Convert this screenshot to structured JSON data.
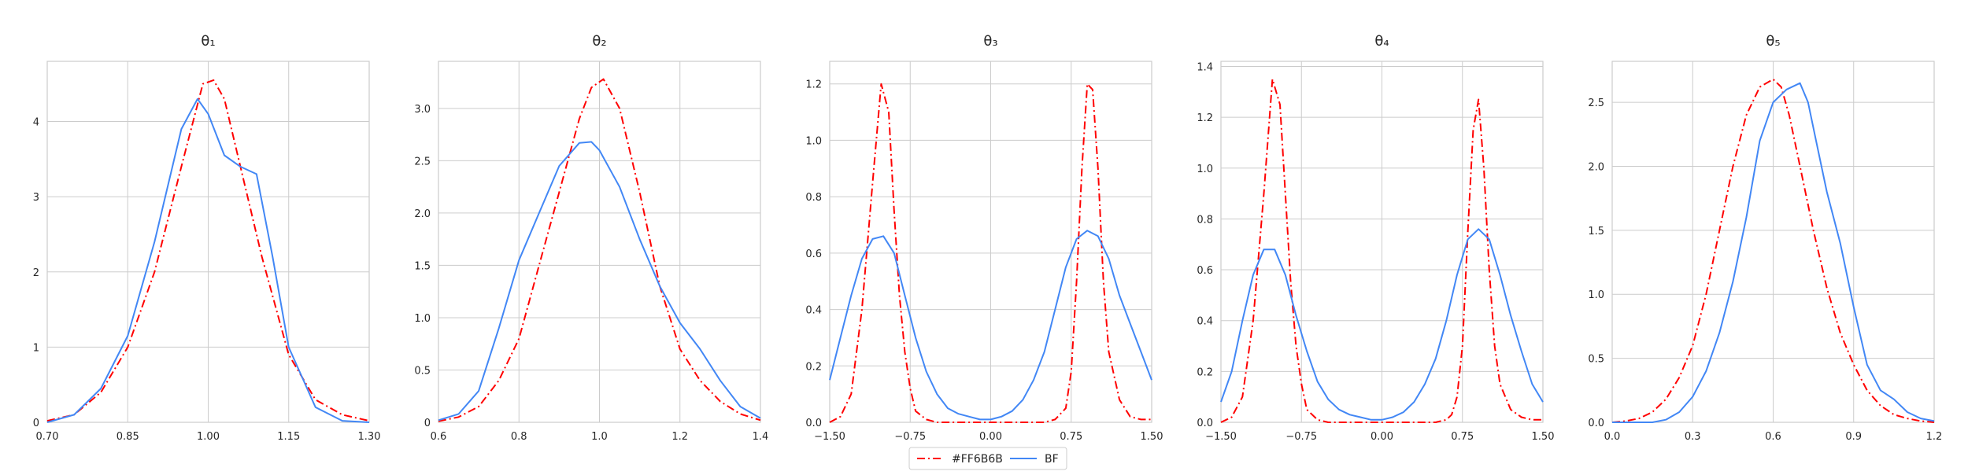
{
  "chart_data": [
    {
      "type": "line",
      "title": "θ₁",
      "xlim": [
        0.7,
        1.3
      ],
      "ylim": [
        0,
        4.8
      ],
      "xticks": [
        "0.70",
        "0.85",
        "1.00",
        "1.15",
        "1.30"
      ],
      "yticks": [
        "0",
        "1",
        "2",
        "3",
        "4"
      ],
      "grid": true,
      "series": [
        {
          "name": "#FF6B6B",
          "color": "#ff0000",
          "style": "dashdot",
          "x": [
            0.7,
            0.75,
            0.8,
            0.85,
            0.9,
            0.95,
            0.99,
            1.01,
            1.03,
            1.06,
            1.1,
            1.15,
            1.2,
            1.25,
            1.3
          ],
          "y": [
            0.02,
            0.1,
            0.4,
            1.0,
            2.0,
            3.4,
            4.5,
            4.55,
            4.3,
            3.4,
            2.2,
            0.9,
            0.3,
            0.1,
            0.02
          ]
        },
        {
          "name": "BF",
          "color": "#4287f5",
          "style": "solid",
          "x": [
            0.7,
            0.75,
            0.8,
            0.85,
            0.9,
            0.95,
            0.98,
            1.0,
            1.03,
            1.06,
            1.09,
            1.12,
            1.15,
            1.2,
            1.25,
            1.3
          ],
          "y": [
            0.0,
            0.1,
            0.45,
            1.15,
            2.4,
            3.9,
            4.3,
            4.1,
            3.55,
            3.4,
            3.3,
            2.2,
            1.0,
            0.2,
            0.02,
            0.0
          ]
        }
      ]
    },
    {
      "type": "line",
      "title": "θ₂",
      "xlim": [
        0.6,
        1.4
      ],
      "ylim": [
        0,
        3.45
      ],
      "xticks": [
        "0.6",
        "0.8",
        "1.0",
        "1.2",
        "1.4"
      ],
      "yticks": [
        "0",
        "0.5",
        "1.0",
        "1.5",
        "2.0",
        "2.5",
        "3.0"
      ],
      "grid": true,
      "series": [
        {
          "name": "#FF6B6B",
          "color": "#ff0000",
          "style": "dashdot",
          "x": [
            0.6,
            0.65,
            0.7,
            0.75,
            0.8,
            0.85,
            0.9,
            0.95,
            0.98,
            1.01,
            1.05,
            1.1,
            1.15,
            1.2,
            1.25,
            1.3,
            1.35,
            1.4
          ],
          "y": [
            0.01,
            0.05,
            0.15,
            0.4,
            0.8,
            1.5,
            2.2,
            2.9,
            3.2,
            3.28,
            3.0,
            2.2,
            1.3,
            0.7,
            0.4,
            0.2,
            0.08,
            0.02
          ]
        },
        {
          "name": "BF",
          "color": "#4287f5",
          "style": "solid",
          "x": [
            0.6,
            0.65,
            0.7,
            0.75,
            0.8,
            0.85,
            0.9,
            0.95,
            0.98,
            1.0,
            1.05,
            1.1,
            1.15,
            1.2,
            1.25,
            1.3,
            1.35,
            1.4
          ],
          "y": [
            0.02,
            0.08,
            0.3,
            0.9,
            1.55,
            2.0,
            2.45,
            2.67,
            2.68,
            2.6,
            2.25,
            1.75,
            1.3,
            0.95,
            0.7,
            0.4,
            0.15,
            0.04
          ]
        }
      ]
    },
    {
      "type": "line",
      "title": "θ₃",
      "xlim": [
        -1.5,
        1.5
      ],
      "ylim": [
        0,
        1.28
      ],
      "xticks": [
        "−1.50",
        "−0.75",
        "0.00",
        "0.75",
        "1.50"
      ],
      "xtick_values": [
        -1.5,
        -0.75,
        0,
        0.75,
        1.5
      ],
      "yticks": [
        "0.0",
        "0.2",
        "0.4",
        "0.6",
        "0.8",
        "1.0",
        "1.2"
      ],
      "grid": true,
      "series": [
        {
          "name": "#FF6B6B",
          "color": "#ff0000",
          "style": "dashdot",
          "x": [
            -1.5,
            -1.4,
            -1.3,
            -1.2,
            -1.1,
            -1.02,
            -0.95,
            -0.9,
            -0.85,
            -0.8,
            -0.75,
            -0.7,
            -0.6,
            -0.5,
            -0.3,
            0.0,
            0.3,
            0.5,
            0.6,
            0.7,
            0.75,
            0.8,
            0.85,
            0.9,
            0.95,
            1.0,
            1.05,
            1.1,
            1.2,
            1.3,
            1.4,
            1.5
          ],
          "y": [
            0.0,
            0.02,
            0.1,
            0.4,
            0.85,
            1.2,
            1.1,
            0.75,
            0.45,
            0.25,
            0.12,
            0.04,
            0.01,
            0.0,
            0.0,
            0.0,
            0.0,
            0.0,
            0.01,
            0.05,
            0.18,
            0.5,
            0.9,
            1.2,
            1.18,
            0.9,
            0.5,
            0.25,
            0.08,
            0.02,
            0.01,
            0.01
          ]
        },
        {
          "name": "BF",
          "color": "#4287f5",
          "style": "solid",
          "x": [
            -1.5,
            -1.4,
            -1.3,
            -1.2,
            -1.1,
            -1.0,
            -0.9,
            -0.8,
            -0.7,
            -0.6,
            -0.5,
            -0.4,
            -0.3,
            -0.2,
            -0.1,
            0.0,
            0.1,
            0.2,
            0.3,
            0.4,
            0.5,
            0.6,
            0.7,
            0.8,
            0.9,
            1.0,
            1.1,
            1.2,
            1.3,
            1.4,
            1.5
          ],
          "y": [
            0.15,
            0.3,
            0.45,
            0.58,
            0.65,
            0.66,
            0.6,
            0.45,
            0.3,
            0.18,
            0.1,
            0.05,
            0.03,
            0.02,
            0.01,
            0.01,
            0.02,
            0.04,
            0.08,
            0.15,
            0.25,
            0.4,
            0.55,
            0.65,
            0.68,
            0.66,
            0.58,
            0.45,
            0.35,
            0.25,
            0.15
          ]
        }
      ]
    },
    {
      "type": "line",
      "title": "θ₄",
      "xlim": [
        -1.5,
        1.5
      ],
      "ylim": [
        0,
        1.42
      ],
      "xticks": [
        "−1.50",
        "−0.75",
        "0.00",
        "0.75",
        "1.50"
      ],
      "xtick_values": [
        -1.5,
        -0.75,
        0,
        0.75,
        1.5
      ],
      "yticks": [
        "0.0",
        "0.2",
        "0.4",
        "0.6",
        "0.8",
        "1.0",
        "1.2",
        "1.4"
      ],
      "grid": true,
      "series": [
        {
          "name": "#FF6B6B",
          "color": "#ff0000",
          "style": "dashdot",
          "x": [
            -1.5,
            -1.4,
            -1.3,
            -1.2,
            -1.1,
            -1.02,
            -0.95,
            -0.9,
            -0.85,
            -0.8,
            -0.75,
            -0.7,
            -0.6,
            -0.5,
            -0.3,
            0.0,
            0.3,
            0.5,
            0.6,
            0.65,
            0.7,
            0.75,
            0.8,
            0.85,
            0.9,
            0.95,
            1.0,
            1.05,
            1.1,
            1.2,
            1.3,
            1.4,
            1.5
          ],
          "y": [
            0.0,
            0.02,
            0.1,
            0.4,
            0.9,
            1.35,
            1.25,
            0.9,
            0.55,
            0.3,
            0.15,
            0.05,
            0.01,
            0.0,
            0.0,
            0.0,
            0.0,
            0.0,
            0.01,
            0.03,
            0.1,
            0.3,
            0.75,
            1.15,
            1.27,
            1.0,
            0.6,
            0.3,
            0.15,
            0.05,
            0.02,
            0.01,
            0.01
          ]
        },
        {
          "name": "BF",
          "color": "#4287f5",
          "style": "solid",
          "x": [
            -1.5,
            -1.4,
            -1.3,
            -1.2,
            -1.1,
            -1.0,
            -0.9,
            -0.8,
            -0.7,
            -0.6,
            -0.5,
            -0.4,
            -0.3,
            -0.2,
            -0.1,
            0.0,
            0.1,
            0.2,
            0.3,
            0.4,
            0.5,
            0.6,
            0.7,
            0.8,
            0.9,
            1.0,
            1.1,
            1.2,
            1.3,
            1.4,
            1.5
          ],
          "y": [
            0.08,
            0.2,
            0.4,
            0.58,
            0.68,
            0.68,
            0.58,
            0.42,
            0.28,
            0.16,
            0.09,
            0.05,
            0.03,
            0.02,
            0.01,
            0.01,
            0.02,
            0.04,
            0.08,
            0.15,
            0.25,
            0.4,
            0.58,
            0.72,
            0.76,
            0.72,
            0.58,
            0.42,
            0.28,
            0.15,
            0.08
          ]
        }
      ]
    },
    {
      "type": "line",
      "title": "θ₅",
      "xlim": [
        0.0,
        1.2
      ],
      "ylim": [
        0,
        2.82
      ],
      "xticks": [
        "0.0",
        "0.3",
        "0.6",
        "0.9",
        "1.2"
      ],
      "yticks": [
        "0.0",
        "0.5",
        "1.0",
        "1.5",
        "2.0",
        "2.5"
      ],
      "grid": true,
      "series": [
        {
          "name": "#FF6B6B",
          "color": "#ff0000",
          "style": "dashdot",
          "x": [
            0.0,
            0.05,
            0.1,
            0.15,
            0.2,
            0.25,
            0.3,
            0.35,
            0.4,
            0.45,
            0.5,
            0.55,
            0.6,
            0.63,
            0.66,
            0.7,
            0.75,
            0.8,
            0.85,
            0.9,
            0.95,
            1.0,
            1.05,
            1.1,
            1.15,
            1.2
          ],
          "y": [
            0.0,
            0.01,
            0.03,
            0.08,
            0.18,
            0.35,
            0.6,
            1.0,
            1.5,
            2.0,
            2.4,
            2.62,
            2.68,
            2.62,
            2.4,
            2.0,
            1.5,
            1.05,
            0.7,
            0.45,
            0.25,
            0.13,
            0.06,
            0.03,
            0.01,
            0.0
          ]
        },
        {
          "name": "BF",
          "color": "#4287f5",
          "style": "solid",
          "x": [
            0.0,
            0.15,
            0.2,
            0.25,
            0.3,
            0.35,
            0.4,
            0.45,
            0.5,
            0.55,
            0.6,
            0.65,
            0.7,
            0.73,
            0.76,
            0.8,
            0.85,
            0.9,
            0.95,
            1.0,
            1.05,
            1.1,
            1.15,
            1.2
          ],
          "y": [
            0.0,
            0.0,
            0.02,
            0.08,
            0.2,
            0.4,
            0.7,
            1.1,
            1.6,
            2.2,
            2.5,
            2.6,
            2.65,
            2.5,
            2.2,
            1.8,
            1.4,
            0.9,
            0.45,
            0.25,
            0.18,
            0.08,
            0.03,
            0.01
          ]
        }
      ]
    }
  ],
  "legend": {
    "placement": "bottom-center",
    "entries": [
      {
        "label": "#FF6B6B",
        "color": "#ff0000",
        "style": "dashdot"
      },
      {
        "label": "BF",
        "color": "#4287f5",
        "style": "solid"
      }
    ]
  }
}
